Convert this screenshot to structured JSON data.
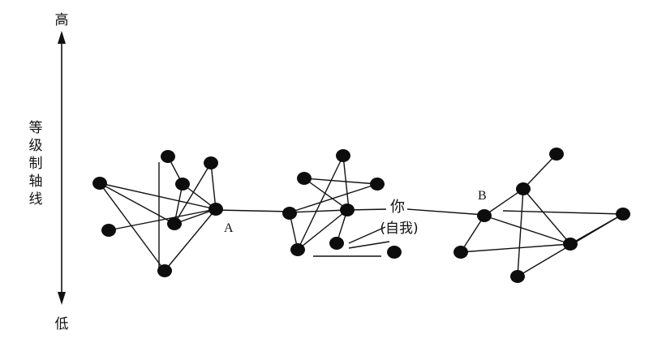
{
  "axis": {
    "top_label": "高",
    "bottom_label": "低",
    "title_chars": [
      "等",
      "级",
      "制",
      "轴",
      "线"
    ]
  },
  "labels": {
    "node_a": "A",
    "node_b": "B",
    "you": "你",
    "self": "(自我)"
  },
  "colors": {
    "ink": "#111111",
    "node": "#0d0d0d",
    "background": "#ffffff"
  }
}
